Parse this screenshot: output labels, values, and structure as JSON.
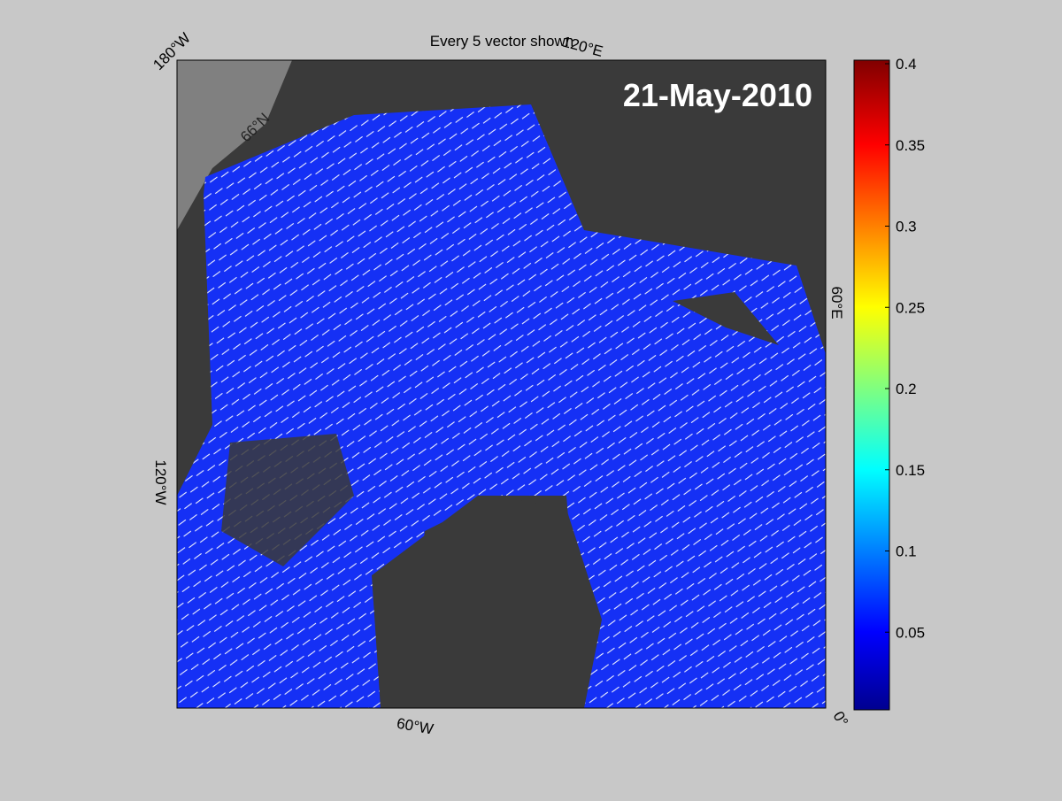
{
  "map": {
    "title": "Every 5 vector shown",
    "date": "21-May-2010",
    "labels": [
      "180°W",
      "120°E",
      "60°E",
      "0°",
      "60°W",
      "120°W",
      "66°N"
    ]
  },
  "colorbar": {
    "clim": [
      0,
      0.4
    ],
    "ticks": [
      0.05,
      0.1,
      0.15,
      0.2,
      0.25,
      0.3,
      0.35,
      0.4
    ],
    "colormap": "jet"
  }
}
